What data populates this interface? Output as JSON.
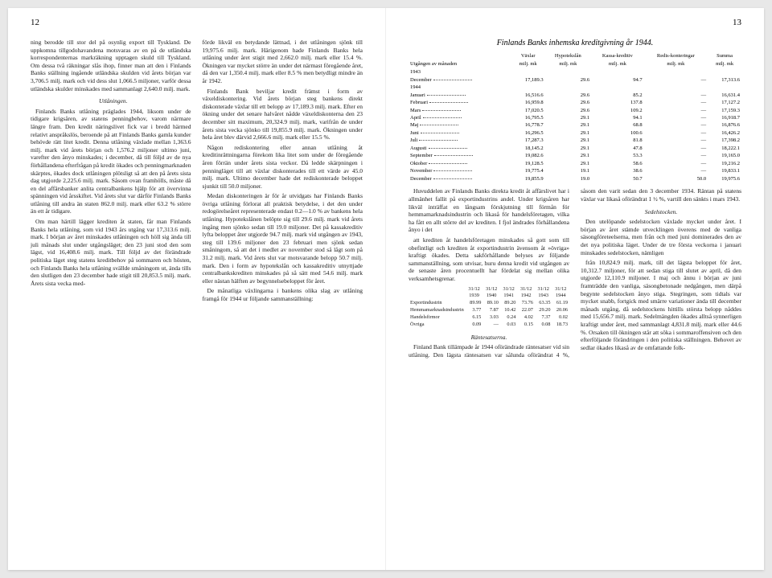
{
  "left": {
    "pagenum": "12",
    "col1": {
      "p1": "ning berodde till stor del på osynlig export till Tyskland. De uppkomna tillgodohavandena motsvaras av en på de utländska korrespondenternas markräkning upptagen skuld till Tyskland. Om dessa två räkningar slås ihop, finner man att den i Finlands Banks ställning ingående utländska skulden vid årets början var 3,706.5 milj. mark och vid dess slut 1,066.5 miljoner, varför dessa utländska skulder minskades med sammanlagt 2,640.0 milj. mark.",
      "h1": "Utlåningen.",
      "p2": "Finlands Banks utlåning präglades 1944, liksom under de tidigare krigsåren, av statens penningbehov, varom närmare längre fram. Den kredit näringslivet fick var i bredd härmed relativt anspråkslös, beroende på att Finlands Banks gamla kunder behövde rätt litet kredit. Denna utlåning växlade mellan 1,363.6 milj. mark vid årets början och 1,576.2 miljoner ultimo juni, varefter den ånyo minskades; i december, då till följd av de nya förhållandena efterfrågan på kredit ökades och penningmarknaden skärptes, ökades dock utlåningen plötsligt så att den på årets sista dag utgjorde 2,225.6 milj. mark. Såsom ovan framhölls, måste då en del affärsbanker anlita centralbankens hjälp för att övervinna spänningen vid årsskiftet. Vid årets slut var därför Finlands Banks utlåning till andra än staten 862.0 milj. mark eller 63.2 % större än ett år tidigare.",
      "p3": "Om man härtill lägger krediten åt staten, får man Finlands Banks hela utlåning, som vid 1943 års utgång var 17,313.6 milj. mark. I början av året minskades utlåningen och höll sig ända till juli månads slut under utgångsläget; den 23 juni stod den som lägst, vid 16,408.6 milj. mark. Till följd av det förändrade politiska läget steg statens kreditbehov på sommaren och hösten, och Finlands Banks hela utlåning svällde småningom ut, ända tills den slutligen den 23 december hade stigit till 20,853.5 milj. mark. Årets sista vecka med-"
    },
    "col2": {
      "p1": "förde likväl en betydande lättnad, i det utlåningen sjönk till 19,975.6 milj. mark. Härigenom hade Finlands Banks hela utlåning under året stigit med 2,662.0 milj. mark eller 15.4 %. Ökningen var mycket större än under det närmast föregående året, då den var 1,350.4 milj. mark eller 8.5 % men betydligt mindre än år 1942.",
      "p2": "Finlands Bank beviljar kredit främst i form av växeldiskontering. Vid årets början steg bankens direkt diskonterade växlar till ett belopp av 17,189.3 milj. mark. Efter en ökning under det senare halvåret nådde växeldiskonterna den 23 december sitt maximum, 20,324.9 milj. mark, varifrån de under årets sista vecka sjönko till 19,855.9 milj. mark. Ökningen under hela året blev därvid 2,666.6 milj. mark eller 15.5 %.",
      "p3": "Någon rediskontering eller annan utlåning åt kreditinrättningarna förekom lika litet som under de föregående åren förrän under årets sista veckor. Då ledde skärpningen i penningläget till att växlar diskonterades till ett värde av 45.0 milj. mark. Ultimo december hade det rediskonterade beloppet sjunkit till 50.0 miljoner.",
      "p4": "Medan diskonteringen är för år utvidgats har Finlands Banks övriga utlåning förlorat all praktisk betydelse, i det den under redogörelseåret representerade endast 0.2—1.0 % av bankens hela utlåning. Hypotekslånen belöpte sig till 29.6 milj. mark vid årets ingång men sjönko sedan till 19.0 miljoner. Det på kassakreditiv lyfta beloppet åter utgjorde 94.7 milj. mark vid utgången av 1943, steg till 139.6 miljoner den 23 februari men sjönk sedan småningom, så att det i medlet av november stod så lågt som på 31.2 milj. mark. Vid årets slut var motsvarande belopp 50.7 milj. mark. Den i form av hypotekslån och kassakreditiv utnyttjade centralbankskrediten minskades på så sätt med 54.6 milj. mark eller nästan hälften av begynnelsebeloppet för året.",
      "p5": "De månatliga växlingarna i bankens olika slag av utlåning framgå för 1944 ur följande sammanställning:"
    }
  },
  "right": {
    "pagenum": "13",
    "table1": {
      "title": "Finlands Banks inhemska kreditgivning år 1944.",
      "head1": "Utgången av månaden",
      "cols": [
        "Växlar",
        "Hypotekslån",
        "Kassa-kreditiv",
        "Redis-konteringar",
        "Summa"
      ],
      "unit": "milj. mk",
      "rows": [
        {
          "y": "1943",
          "m": "December",
          "v": [
            "17,189.3",
            "29.6",
            "94.7",
            "—",
            "17,313.6"
          ]
        },
        {
          "y": "1944",
          "m": "Januari",
          "v": [
            "16,516.6",
            "29.6",
            "85.2",
            "—",
            "16,631.4"
          ]
        },
        {
          "y": "",
          "m": "Februari",
          "v": [
            "16,959.8",
            "29.6",
            "137.8",
            "—",
            "17,127.2"
          ]
        },
        {
          "y": "",
          "m": "Mars",
          "v": [
            "17,020.5",
            "29.6",
            "109.2",
            "—",
            "17,159.3"
          ]
        },
        {
          "y": "",
          "m": "April",
          "v": [
            "16,795.5",
            "29.1",
            "94.1",
            "—",
            "16,918.7"
          ]
        },
        {
          "y": "",
          "m": "Maj",
          "v": [
            "16,778.7",
            "29.1",
            "68.8",
            "—",
            "16,876.6"
          ]
        },
        {
          "y": "",
          "m": "Juni",
          "v": [
            "16,296.5",
            "29.1",
            "100.6",
            "—",
            "16,426.2"
          ]
        },
        {
          "y": "",
          "m": "Juli",
          "v": [
            "17,287.3",
            "29.1",
            "81.8",
            "—",
            "17,398.2"
          ]
        },
        {
          "y": "",
          "m": "Augusti",
          "v": [
            "18,145.2",
            "29.1",
            "47.8",
            "—",
            "18,222.1"
          ]
        },
        {
          "y": "",
          "m": "September",
          "v": [
            "19,082.6",
            "29.1",
            "53.3",
            "—",
            "19,165.0"
          ]
        },
        {
          "y": "",
          "m": "Oktober",
          "v": [
            "19,128.5",
            "29.1",
            "58.6",
            "—",
            "19,216.2"
          ]
        },
        {
          "y": "",
          "m": "November",
          "v": [
            "19,775.4",
            "19.1",
            "38.6",
            "—",
            "19,833.1"
          ]
        },
        {
          "y": "",
          "m": "December",
          "v": [
            "19,855.9",
            "19.0",
            "50.7",
            "50.0",
            "19,975.6"
          ]
        }
      ]
    },
    "lower": {
      "p1": "Huvuddelen av Finlands Banks direkta kredit åt affärslivet har i allmänhet fallit på exportindustrins andel. Under krigsåren har likväl inträffat en långsam förskjutning till förmån för hemmamarknadsindustrin och likaså för handelsföretagen, vilka ha fått en allt större del av krediten. I fjol ändrades förhållandena ånyo i det",
      "p2": "att krediten åt handelsföretagen minskades så gott som till obefintligt och krediten åt exportindustrin ävensom åt »övriga» kraftigt ökades. Detta sakförhållande belyses av följande sammanställning, som utvisar, huru denna kredit vid utgången av de senaste åren procentuellt har fördelat sig mellan olika verksamhetsgrenar.",
      "table2": {
        "cols": [
          "31/12 1939",
          "31/12 1940",
          "31/12 1941",
          "31/12 1942",
          "31/12 1943",
          "31/12 1944"
        ],
        "rows": [
          {
            "lbl": "Exportindustrin",
            "v": [
              "89.99",
              "89.10",
              "89.20",
              "73.76",
              "63.35",
              "61.19"
            ]
          },
          {
            "lbl": "Hemmamarknadsindustrin",
            "v": [
              "3.77",
              "7.87",
              "10.42",
              "22.07",
              "29.20",
              "20.06"
            ]
          },
          {
            "lbl": "Handelsfirmor",
            "v": [
              "6.15",
              "3.03",
              "0.24",
              "4.02",
              "7.37",
              "0.02"
            ]
          },
          {
            "lbl": "Övriga",
            "v": [
              "0.09",
              "—",
              "0.03",
              "0.15",
              "0.08",
              "18.73"
            ]
          }
        ]
      },
      "h1": "Räntesatserna.",
      "p3": "Finland Bank tillämpade år 1944 oförändrade räntesatser vid sin utlåning. Den lägsta räntesatsen var sålunda oförändrat 4 %, såsom den varit sedan den 3 december 1934. Räntan på statens växlar var likaså oförändrat 1 ½ %, vartill den sänkts i mars 1943.",
      "h2": "Sedelstocken.",
      "p4": "Den utelöpande sedelstocken växlade mycket under året. I början av året stämde utvecklingen överens med de vanliga säsongföreteelserna, men från och med juni dominerades den av det nya politiska läget. Under de tre första veckorna i januari minskades sedelstocken, nämligen",
      "p5": "från 10,824.9 milj. mark, till det lägsta beloppet för året, 10,312.7 miljoner, för att sedan stiga till slutet av april, då den utgjorde 12,110.9 miljoner. I maj och ännu i början av juni framträdde den vanliga, säsongbetonade nedgången, men därpå begynte sedelstocken ånyo stiga. Stegringen, som tidtals var mycket snabb, fortgick med smärre variationer ända till december månads utgång, då sedelstockens hittills största belopp nåddes med 15,656.7 milj. mark. Sedelmängden ökades alltså synnerligen kraftigt under året, med sammanlagt 4,831.8 milj. mark eller 44.6 %. Orsaken till ökningen står att söka i sommaroffensiven och den efterföljande förändringen i den politiska ställningen. Behovet av sedlar ökades likaså av de omfattande folk-"
    }
  }
}
